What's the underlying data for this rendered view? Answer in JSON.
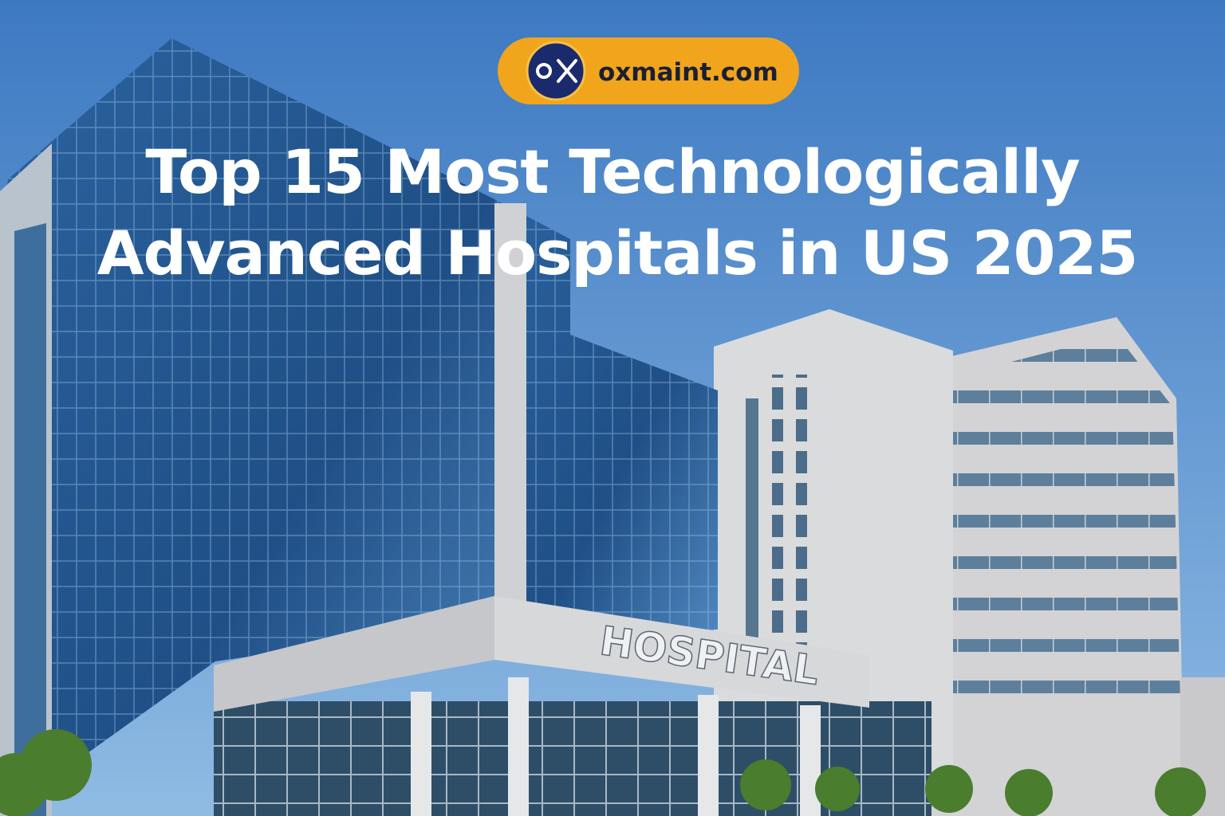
{
  "badge": {
    "text": "oxmaint.com"
  },
  "title": {
    "lines": [
      "Top 15 Most Technologically",
      "Advanced Hospitals in US 2025"
    ]
  },
  "sign": {
    "text": "HOSPITAL"
  }
}
